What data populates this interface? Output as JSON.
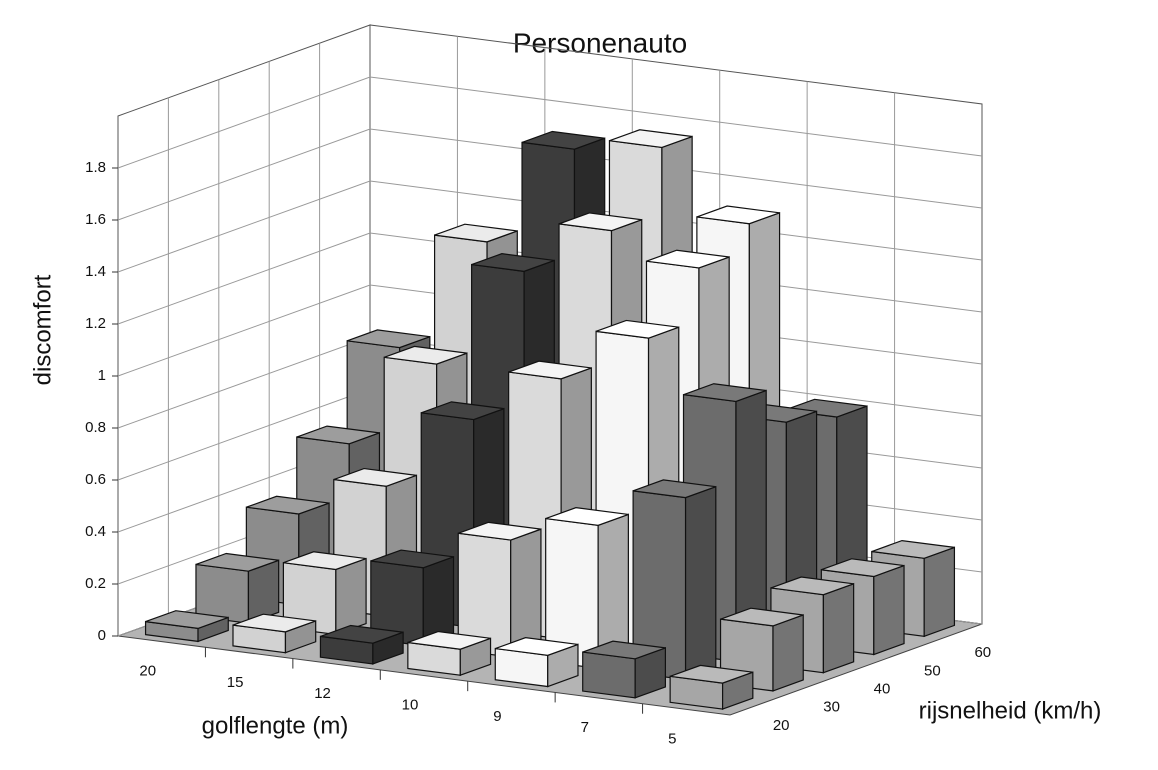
{
  "chart_data": {
    "type": "bar3d",
    "title": "Personenauto",
    "y_label": "discomfort",
    "x_label": "golflengte (m)",
    "z_label": "rijsnelheid (km/h)",
    "categories": [
      "20",
      "15",
      "12",
      "10",
      "9",
      "7",
      "5"
    ],
    "colors": [
      "#8c8c8c",
      "#d2d2d2",
      "#3c3c3c",
      "#dadada",
      "#f6f6f6",
      "#6c6c6c",
      "#a6a6a6"
    ],
    "series": [
      {
        "name": "20",
        "values": [
          0.05,
          0.08,
          0.08,
          0.1,
          0.12,
          0.15,
          0.1
        ]
      },
      {
        "name": "30",
        "values": [
          0.2,
          0.25,
          0.3,
          0.45,
          0.55,
          0.7,
          0.25
        ]
      },
      {
        "name": "40",
        "values": [
          0.35,
          0.5,
          0.8,
          1.0,
          1.2,
          1.0,
          0.3
        ]
      },
      {
        "name": "50",
        "values": [
          0.55,
          0.9,
          1.3,
          1.5,
          1.4,
          0.85,
          0.3
        ]
      },
      {
        "name": "60",
        "values": [
          0.85,
          1.3,
          1.7,
          1.75,
          1.5,
          0.8,
          0.3
        ]
      }
    ],
    "ylim": [
      0,
      2
    ],
    "yticks": [
      0,
      0.2,
      0.4,
      0.6,
      0.8,
      1,
      1.2,
      1.4,
      1.6,
      1.8
    ],
    "grid": true
  }
}
